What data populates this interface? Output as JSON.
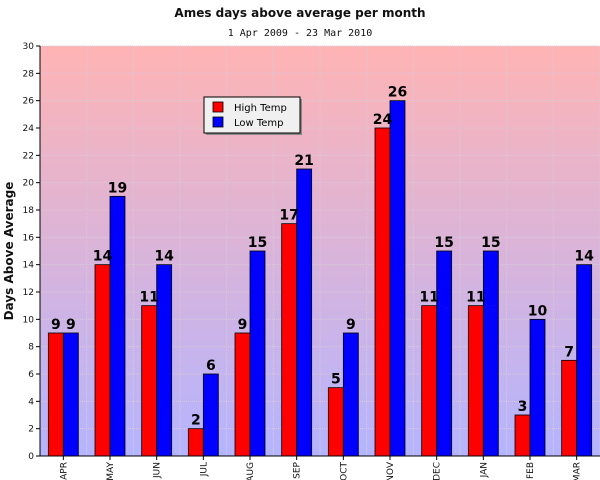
{
  "chart_data": {
    "type": "bar",
    "title": "Ames days above average per month",
    "subtitle": "1 Apr 2009 - 23 Mar 2010",
    "xlabel": "",
    "ylabel": "Days Above Average",
    "ylim": [
      0,
      30
    ],
    "yticks": [
      0,
      2,
      4,
      6,
      8,
      10,
      12,
      14,
      16,
      18,
      20,
      22,
      24,
      26,
      28,
      30
    ],
    "grid": true,
    "legend_position": "top-left",
    "categories": [
      "APR",
      "MAY",
      "JUN",
      "JUL",
      "AUG",
      "SEP",
      "OCT",
      "NOV",
      "DEC",
      "JAN",
      "FEB",
      "MAR"
    ],
    "series": [
      {
        "name": "High Temp",
        "color": "#ff0000",
        "values": [
          9,
          14,
          11,
          2,
          9,
          17,
          5,
          24,
          11,
          11,
          3,
          7
        ]
      },
      {
        "name": "Low Temp",
        "color": "#0000ff",
        "values": [
          9,
          19,
          14,
          6,
          15,
          21,
          9,
          26,
          15,
          15,
          10,
          14
        ]
      }
    ],
    "background_gradient": [
      "#ffb4b4",
      "#b4b4ff"
    ]
  }
}
